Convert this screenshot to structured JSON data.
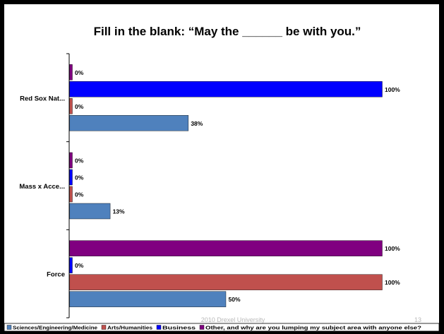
{
  "slide": {
    "footer_left": "2010 Drexel University",
    "footer_right": "13"
  },
  "chart_data": {
    "type": "bar",
    "orientation": "horizontal",
    "title": "Fill in the blank:  “May the ______ be with you.”",
    "categories": [
      "Red Sox Nat...",
      "Mass x Acce...",
      "Force"
    ],
    "series": [
      {
        "name": "Other, and why are you lumping my subject area with anyone else?",
        "values": [
          0,
          0,
          100
        ],
        "color": "#800080"
      },
      {
        "name": "Business",
        "values": [
          100,
          0,
          0
        ],
        "color": "#0000FF"
      },
      {
        "name": "Arts/Humanities",
        "values": [
          0,
          0,
          100
        ],
        "color": "#C0504D"
      },
      {
        "name": "Sciences/Engineering/Medicine",
        "values": [
          38,
          13,
          50
        ],
        "color": "#4F81BD"
      }
    ],
    "legend_order": [
      "Sciences/Engineering/Medicine",
      "Arts/Humanities",
      "Business",
      "Other, and why are you lumping my subject area with anyone else?"
    ],
    "value_suffix": "%",
    "xlim": [
      0,
      100
    ],
    "grid": false,
    "legend_position": "bottom"
  }
}
